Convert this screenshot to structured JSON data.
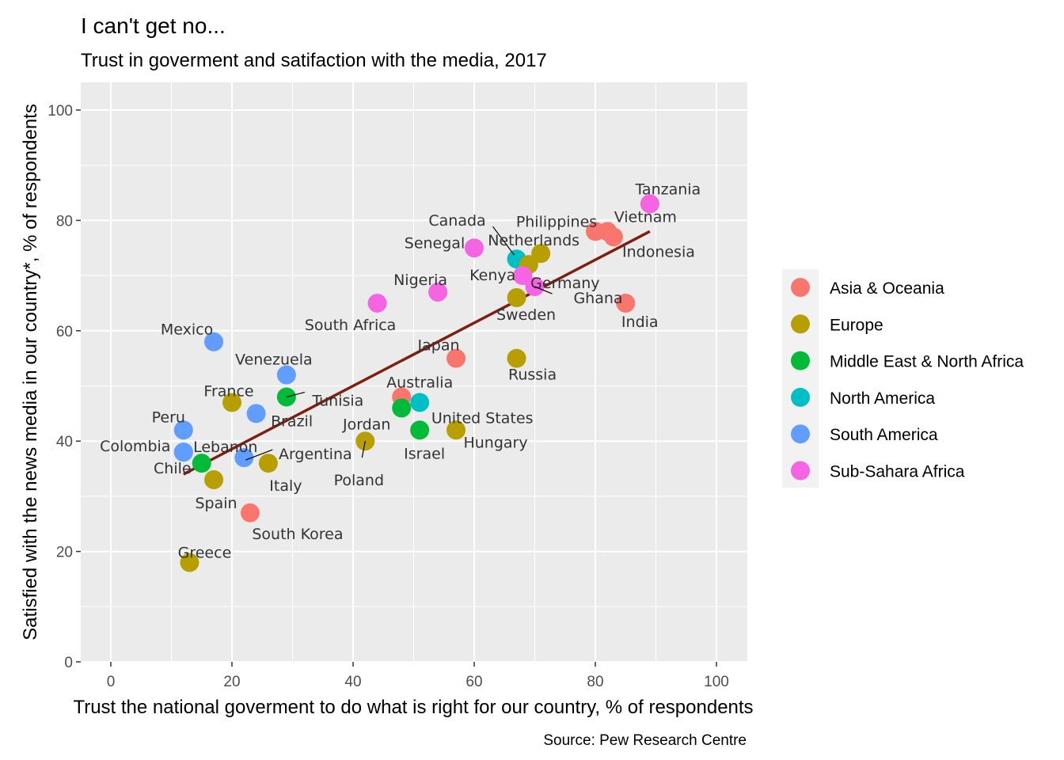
{
  "chart_data": {
    "type": "scatter",
    "title": "I can't get no...",
    "subtitle": "Trust in goverment and satifaction with the media, 2017",
    "xlabel": "Trust the national goverment to do what is right for our country, % of respondents",
    "ylabel": "Satisfied with the news media in our country*, % of respondents",
    "caption": "Source: Pew Research Centre",
    "xlim": [
      0,
      100
    ],
    "ylim": [
      0,
      100
    ],
    "x_ticks": [
      0,
      20,
      40,
      60,
      80,
      100
    ],
    "y_ticks": [
      0,
      20,
      40,
      60,
      80,
      100
    ],
    "grid": true,
    "legend_position": "right",
    "groups": [
      {
        "name": "Asia & Oceania",
        "color": "#F8766D"
      },
      {
        "name": "Europe",
        "color": "#B79F00"
      },
      {
        "name": "Middle East & North Africa",
        "color": "#00BA38"
      },
      {
        "name": "North America",
        "color": "#00BFC4"
      },
      {
        "name": "South America",
        "color": "#619CFF"
      },
      {
        "name": "Sub-Sahara Africa",
        "color": "#F564E3"
      }
    ],
    "points": [
      {
        "label": "Tanzania",
        "x": 89,
        "y": 83,
        "group": "Sub-Sahara Africa"
      },
      {
        "label": "Philippines",
        "x": 80,
        "y": 78,
        "group": "Asia & Oceania"
      },
      {
        "label": "Vietnam",
        "x": 82,
        "y": 78,
        "group": "Asia & Oceania"
      },
      {
        "label": "Indonesia",
        "x": 83,
        "y": 77,
        "group": "Asia & Oceania"
      },
      {
        "label": "India",
        "x": 85,
        "y": 65,
        "group": "Asia & Oceania"
      },
      {
        "label": "Canada",
        "x": 67,
        "y": 73,
        "group": "North America"
      },
      {
        "label": "Netherlands",
        "x": 71,
        "y": 74,
        "group": "Europe"
      },
      {
        "label": "Germany",
        "x": 69,
        "y": 72,
        "group": "Europe"
      },
      {
        "label": "Senegal",
        "x": 60,
        "y": 75,
        "group": "Sub-Sahara Africa"
      },
      {
        "label": "Kenya",
        "x": 68,
        "y": 70,
        "group": "Sub-Sahara Africa"
      },
      {
        "label": "Ghana",
        "x": 70,
        "y": 68,
        "group": "Sub-Sahara Africa"
      },
      {
        "label": "Sweden",
        "x": 67,
        "y": 66,
        "group": "Europe"
      },
      {
        "label": "Nigeria",
        "x": 54,
        "y": 67,
        "group": "Sub-Sahara Africa"
      },
      {
        "label": "South Africa",
        "x": 44,
        "y": 65,
        "group": "Sub-Sahara Africa"
      },
      {
        "label": "Japan",
        "x": 57,
        "y": 55,
        "group": "Asia & Oceania"
      },
      {
        "label": "Russia",
        "x": 67,
        "y": 55,
        "group": "Europe"
      },
      {
        "label": "Mexico",
        "x": 17,
        "y": 58,
        "group": "South America"
      },
      {
        "label": "Venezuela",
        "x": 29,
        "y": 52,
        "group": "South America"
      },
      {
        "label": "Tunisia",
        "x": 29,
        "y": 48,
        "group": "Middle East & North Africa"
      },
      {
        "label": "France",
        "x": 20,
        "y": 47,
        "group": "Europe"
      },
      {
        "label": "Brazil",
        "x": 24,
        "y": 45,
        "group": "South America"
      },
      {
        "label": "Australia",
        "x": 48,
        "y": 48,
        "group": "Asia & Oceania"
      },
      {
        "label": "Jordan",
        "x": 48,
        "y": 46,
        "group": "Middle East & North Africa"
      },
      {
        "label": "United States",
        "x": 51,
        "y": 47,
        "group": "North America"
      },
      {
        "label": "Israel",
        "x": 51,
        "y": 42,
        "group": "Middle East & North Africa"
      },
      {
        "label": "Hungary",
        "x": 57,
        "y": 42,
        "group": "Europe"
      },
      {
        "label": "Poland",
        "x": 42,
        "y": 40,
        "group": "Europe"
      },
      {
        "label": "Peru",
        "x": 12,
        "y": 42,
        "group": "South America"
      },
      {
        "label": "Colombia",
        "x": 12,
        "y": 38,
        "group": "South America"
      },
      {
        "label": "Lebanon",
        "x": 15,
        "y": 36,
        "group": "Middle East & North Africa"
      },
      {
        "label": "Argentina",
        "x": 22,
        "y": 37,
        "group": "South America"
      },
      {
        "label": "Italy",
        "x": 26,
        "y": 36,
        "group": "Europe"
      },
      {
        "label": "Chile",
        "x": 12,
        "y": 38,
        "group": "South America"
      },
      {
        "label": "Spain",
        "x": 17,
        "y": 33,
        "group": "Europe"
      },
      {
        "label": "South Korea",
        "x": 23,
        "y": 27,
        "group": "Asia & Oceania"
      },
      {
        "label": "Greece",
        "x": 13,
        "y": 18,
        "group": "Europe"
      }
    ],
    "trendline": {
      "type": "linear",
      "color": "#7F1F0F",
      "from": [
        12,
        34
      ],
      "to": [
        89,
        78
      ]
    }
  }
}
